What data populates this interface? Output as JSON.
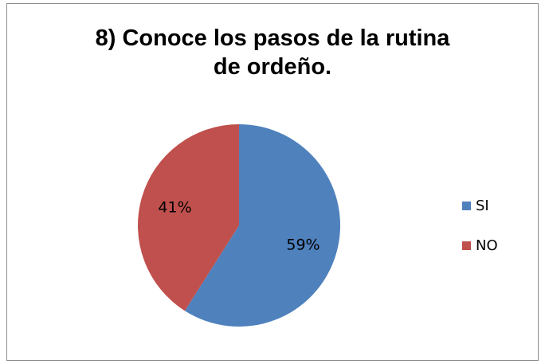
{
  "chart_data": {
    "type": "pie",
    "title": [
      "8) Conoce los pasos de la rutina",
      "de ordeño."
    ],
    "slices": [
      {
        "label": "SI",
        "value": 59,
        "display": "59%",
        "color": "#4F81BD"
      },
      {
        "label": "NO",
        "value": 41,
        "display": "41%",
        "color": "#C0504D"
      }
    ],
    "legend": {
      "position": "right",
      "entries": [
        "SI",
        "NO"
      ]
    }
  }
}
